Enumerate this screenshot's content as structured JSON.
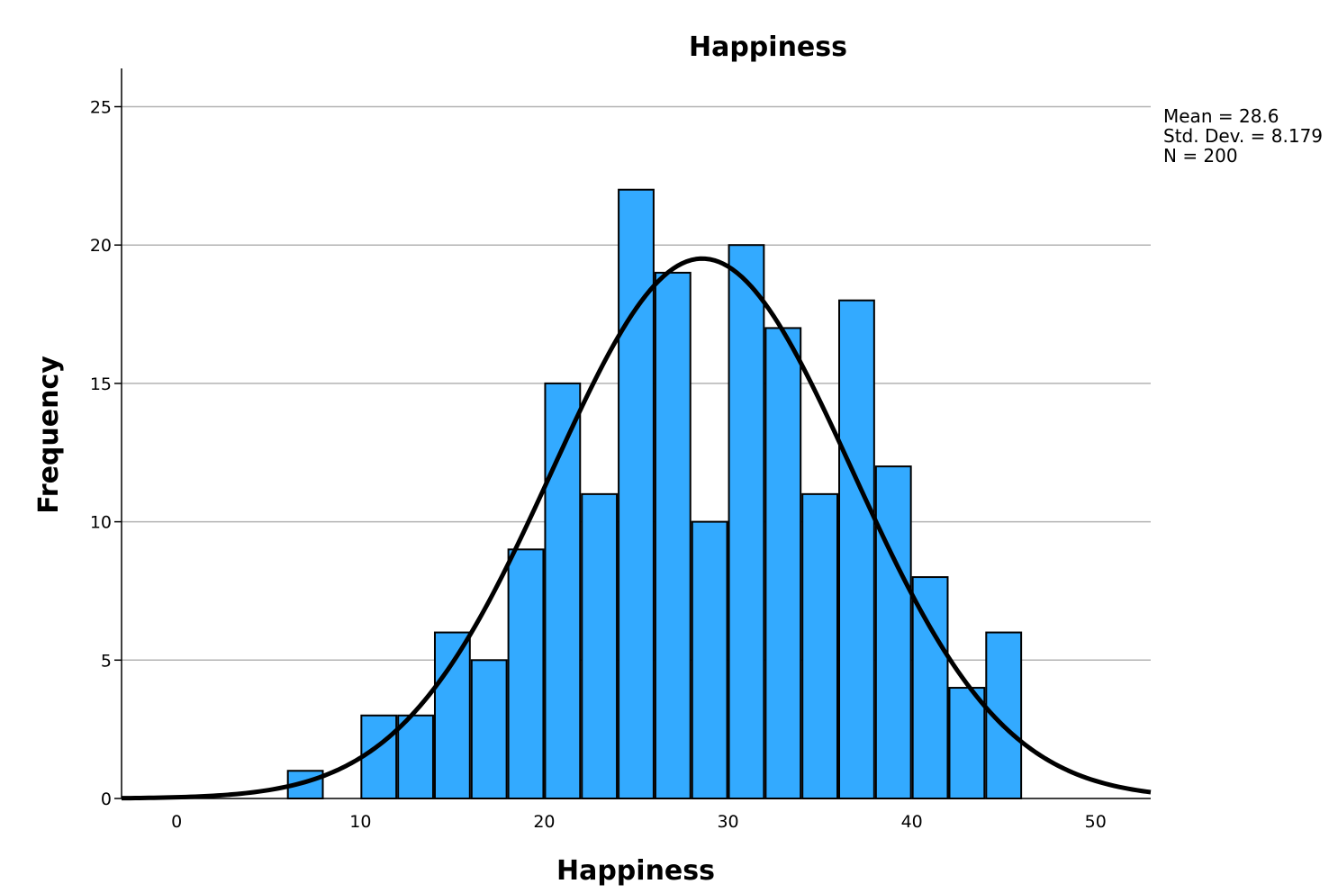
{
  "chart_data": {
    "type": "bar",
    "title": "Happiness",
    "xlabel": "Happiness",
    "ylabel": "Frequency",
    "xlim": [
      -3,
      53
    ],
    "ylim": [
      0,
      25
    ],
    "x_ticks": [
      0,
      10,
      20,
      30,
      40,
      50
    ],
    "y_ticks": [
      0,
      5,
      10,
      15,
      20,
      25
    ],
    "grid": "horizontal",
    "bin_width": 2,
    "bins": [
      {
        "x0": 6,
        "x1": 8,
        "count": 1
      },
      {
        "x0": 10,
        "x1": 12,
        "count": 3
      },
      {
        "x0": 12,
        "x1": 14,
        "count": 3
      },
      {
        "x0": 14,
        "x1": 16,
        "count": 6
      },
      {
        "x0": 16,
        "x1": 18,
        "count": 5
      },
      {
        "x0": 18,
        "x1": 20,
        "count": 9
      },
      {
        "x0": 20,
        "x1": 22,
        "count": 15
      },
      {
        "x0": 22,
        "x1": 24,
        "count": 11
      },
      {
        "x0": 24,
        "x1": 26,
        "count": 22
      },
      {
        "x0": 26,
        "x1": 28,
        "count": 19
      },
      {
        "x0": 28,
        "x1": 30,
        "count": 10
      },
      {
        "x0": 30,
        "x1": 32,
        "count": 20
      },
      {
        "x0": 32,
        "x1": 34,
        "count": 17
      },
      {
        "x0": 34,
        "x1": 36,
        "count": 11
      },
      {
        "x0": 36,
        "x1": 38,
        "count": 18
      },
      {
        "x0": 38,
        "x1": 40,
        "count": 12
      },
      {
        "x0": 40,
        "x1": 42,
        "count": 8
      },
      {
        "x0": 42,
        "x1": 44,
        "count": 4
      },
      {
        "x0": 44,
        "x1": 46,
        "count": 6
      }
    ],
    "normal_curve": {
      "mean": 28.6,
      "std_dev": 8.179,
      "n": 200
    },
    "stats_lines": [
      "Mean = 28.6",
      "Std. Dev. = 8.179",
      "N = 200"
    ],
    "bar_color": "#33aaff",
    "bar_stroke": "#000000",
    "grid_color": "#b3b3b3",
    "curve_color": "#000000"
  }
}
